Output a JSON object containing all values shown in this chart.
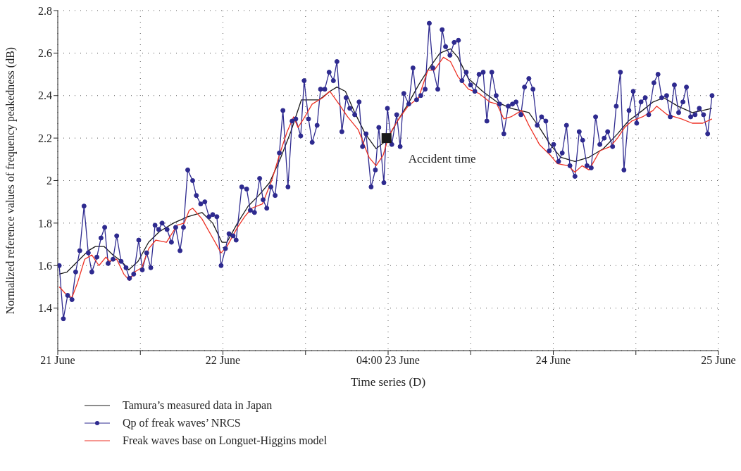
{
  "chart_data": {
    "type": "line",
    "xlabel": "Time series (D)",
    "ylabel": "Normalized reference values of frequency peakedness (dB)",
    "xlim": [
      "--06-21",
      "--06-25"
    ],
    "xticks": [
      {
        "value": "--06-21",
        "label": "21 June"
      },
      {
        "value": "--06-21T12:00",
        "label": null
      },
      {
        "value": "--06-22",
        "label": "22 June"
      },
      {
        "value": "--06-22T12:00",
        "label": null
      },
      {
        "value": "--06-23",
        "label": "04:00 23 June"
      },
      {
        "value": "--06-23T12:00",
        "label": null
      },
      {
        "value": "--06-24",
        "label": "24 June"
      },
      {
        "value": "--06-24T12:00",
        "label": null
      },
      {
        "value": "--06-25",
        "label": "25 June"
      }
    ],
    "ylim": [
      1.2,
      2.8
    ],
    "yticks": [
      1.4,
      1.6,
      1.8,
      2,
      2.2,
      2.4,
      2.6,
      2.8
    ],
    "grid": true,
    "legend": "bottom",
    "annotations": [
      {
        "text": "Accident time",
        "x": "--06-22T23:46",
        "y": 2.2
      }
    ],
    "series": [
      {
        "name": "Tamura’s measured data in Japan",
        "color": "#1a1a1a",
        "marker": "none",
        "x": [
          "--06-21T00:13",
          "--06-21T01:21",
          "--06-21T02:53",
          "--06-21T04:26",
          "--06-21T05:28",
          "--06-21T06:43",
          "--06-21T08:02",
          "--06-21T09:17",
          "--06-21T10:19",
          "--06-21T11:40",
          "--06-21T13:12",
          "--06-21T14:46",
          "--06-21T16:49",
          "--06-21T18:53",
          "--06-21T20:57",
          "--06-21T22:31",
          "--06-21T23:51",
          "--06-22T00:35",
          "--06-22T02:07",
          "--06-22T03:40",
          "--06-22T05:12",
          "--06-22T06:46",
          "--06-22T08:18",
          "--06-22T09:52",
          "--06-22T11:24",
          "--06-22T12:26",
          "--06-22T14:00",
          "--06-22T15:32",
          "--06-22T16:34",
          "--06-22T17:48",
          "--06-22T19:09",
          "--06-22T20:41",
          "--06-22T22:15",
          "--06-22T23:47",
          "--06-23T01:21",
          "--06-23T02:53",
          "--06-23T04:26",
          "--06-23T05:59",
          "--06-23T07:32",
          "--06-23T09:04",
          "--06-23T10:08",
          "--06-23T11:40",
          "--06-23T13:44",
          "--06-23T15:48",
          "--06-23T17:51",
          "--06-23T20:27",
          "--06-23T21:59",
          "--06-23T23:33",
          "--06-24T01:05",
          "--06-24T03:09",
          "--06-24T05:12",
          "--06-24T07:16",
          "--06-24T09:20",
          "--06-24T10:54",
          "--06-24T12:58",
          "--06-24T14:30",
          "--06-24T16:03",
          "--06-24T18:07",
          "--06-24T20:11",
          "--06-24T21:43",
          "--06-24T23:04"
        ],
        "values": [
          1.56,
          1.57,
          1.62,
          1.67,
          1.69,
          1.69,
          1.65,
          1.62,
          1.58,
          1.62,
          1.71,
          1.76,
          1.8,
          1.83,
          1.85,
          1.8,
          1.71,
          1.71,
          1.8,
          1.88,
          1.93,
          1.99,
          2.1,
          2.23,
          2.38,
          2.38,
          2.38,
          2.42,
          2.44,
          2.42,
          2.32,
          2.22,
          2.15,
          2.19,
          2.28,
          2.36,
          2.45,
          2.53,
          2.6,
          2.62,
          2.58,
          2.48,
          2.42,
          2.37,
          2.34,
          2.32,
          2.25,
          2.17,
          2.11,
          2.09,
          2.11,
          2.15,
          2.22,
          2.28,
          2.33,
          2.37,
          2.39,
          2.35,
          2.32,
          2.33,
          2.34
        ]
      },
      {
        "name": "Qp of freak waves’ NRCS",
        "color": "#2e2a8f",
        "marker": "circle",
        "x": [
          "--06-21T00:13",
          "--06-21T00:49",
          "--06-21T01:26",
          "--06-21T02:04",
          "--06-21T02:36",
          "--06-21T03:12",
          "--06-21T03:49",
          "--06-21T04:26",
          "--06-21T04:57",
          "--06-21T05:41",
          "--06-21T06:17",
          "--06-21T06:49",
          "--06-21T07:19",
          "--06-21T08:02",
          "--06-21T08:34",
          "--06-21T09:12",
          "--06-21T09:55",
          "--06-21T10:25",
          "--06-21T11:02",
          "--06-21T11:46",
          "--06-21T12:17",
          "--06-21T12:55",
          "--06-21T13:31",
          "--06-21T14:08",
          "--06-21T14:40",
          "--06-21T15:10",
          "--06-21T15:53",
          "--06-21T16:31",
          "--06-21T17:08",
          "--06-21T17:46",
          "--06-21T18:16",
          "--06-21T18:53",
          "--06-21T19:36",
          "--06-21T20:08",
          "--06-21T20:46",
          "--06-21T21:22",
          "--06-21T21:59",
          "--06-21T22:31",
          "--06-21T23:07",
          "--06-21T23:44",
          "--06-22T00:22",
          "--06-22T00:53",
          "--06-22T01:29",
          "--06-22T01:55",
          "--06-22T02:44",
          "--06-22T03:27",
          "--06-22T03:59",
          "--06-22T04:35",
          "--06-22T05:20",
          "--06-22T05:50",
          "--06-22T06:22",
          "--06-22T06:58",
          "--06-22T07:35",
          "--06-22T08:12",
          "--06-22T08:43",
          "--06-22T09:27",
          "--06-22T10:03",
          "--06-22T10:35",
          "--06-22T11:18",
          "--06-22T11:48",
          "--06-22T12:26",
          "--06-22T12:58",
          "--06-22T13:41",
          "--06-22T14:11",
          "--06-22T14:48",
          "--06-22T15:26",
          "--06-22T16:03",
          "--06-22T16:34",
          "--06-22T17:17",
          "--06-22T17:54",
          "--06-22T18:26",
          "--06-22T19:09",
          "--06-22T19:47",
          "--06-22T20:17",
          "--06-22T20:48",
          "--06-22T21:32",
          "--06-22T22:09",
          "--06-22T22:39",
          "--06-22T23:23",
          "--06-22T23:54",
          "--06-23T00:32",
          "--06-23T01:15",
          "--06-23T01:45",
          "--06-23T02:17",
          "--06-23T03:00",
          "--06-23T03:37",
          "--06-23T04:08",
          "--06-23T04:45",
          "--06-23T05:23",
          "--06-23T05:59",
          "--06-23T06:30",
          "--06-23T07:13",
          "--06-23T07:51",
          "--06-23T08:21",
          "--06-23T08:59",
          "--06-23T09:36",
          "--06-23T10:13",
          "--06-23T10:44",
          "--06-23T11:21",
          "--06-23T11:59",
          "--06-23T12:36",
          "--06-23T13:13",
          "--06-23T13:49",
          "--06-23T14:21",
          "--06-23T15:04",
          "--06-23T15:42",
          "--06-23T16:12",
          "--06-23T16:49",
          "--06-23T17:27",
          "--06-23T18:04",
          "--06-23T18:35",
          "--06-23T19:18",
          "--06-23T19:49",
          "--06-23T20:27",
          "--06-23T21:03",
          "--06-23T21:40",
          "--06-23T22:18",
          "--06-23T22:55",
          "--06-23T23:25",
          "--06-24T00:03",
          "--06-24T00:46",
          "--06-24T01:18",
          "--06-24T01:55",
          "--06-24T02:25",
          "--06-24T03:09",
          "--06-24T03:46",
          "--06-24T04:16",
          "--06-24T04:54",
          "--06-24T05:31",
          "--06-24T06:09",
          "--06-24T06:46",
          "--06-24T07:24",
          "--06-24T07:54",
          "--06-24T08:37",
          "--06-24T09:09",
          "--06-24T09:45",
          "--06-24T10:16",
          "--06-24T11:00",
          "--06-24T11:37",
          "--06-24T12:07",
          "--06-24T12:45",
          "--06-24T13:22",
          "--06-24T13:52",
          "--06-24T14:37",
          "--06-24T15:13",
          "--06-24T15:45",
          "--06-24T16:28",
          "--06-24T17:00",
          "--06-24T17:36",
          "--06-24T18:13",
          "--06-24T18:50",
          "--06-24T19:21",
          "--06-24T19:58",
          "--06-24T20:36",
          "--06-24T21:13",
          "--06-24T21:50",
          "--06-24T22:26",
          "--06-24T23:04"
        ],
        "values": [
          1.6,
          1.35,
          1.46,
          1.44,
          1.57,
          1.67,
          1.88,
          1.66,
          1.57,
          1.64,
          1.73,
          1.78,
          1.61,
          1.63,
          1.74,
          1.62,
          1.59,
          1.54,
          1.56,
          1.72,
          1.58,
          1.66,
          1.59,
          1.79,
          1.77,
          1.8,
          1.77,
          1.71,
          1.78,
          1.67,
          1.78,
          2.05,
          2,
          1.93,
          1.89,
          1.9,
          1.83,
          1.84,
          1.83,
          1.6,
          1.68,
          1.75,
          1.74,
          1.72,
          1.97,
          1.96,
          1.86,
          1.85,
          2.01,
          1.91,
          1.87,
          1.97,
          1.93,
          2.13,
          2.33,
          1.97,
          2.28,
          2.29,
          2.21,
          2.47,
          2.29,
          2.18,
          2.26,
          2.43,
          2.43,
          2.51,
          2.47,
          2.56,
          2.23,
          2.39,
          2.34,
          2.31,
          2.37,
          2.16,
          2.22,
          1.97,
          2.05,
          2.25,
          1.99,
          2.34,
          2.17,
          2.31,
          2.16,
          2.41,
          2.36,
          2.53,
          2.38,
          2.4,
          2.43,
          2.74,
          2.53,
          2.43,
          2.71,
          2.63,
          2.59,
          2.65,
          2.66,
          2.47,
          2.51,
          2.45,
          2.42,
          2.5,
          2.51,
          2.28,
          2.51,
          2.4,
          2.36,
          2.22,
          2.35,
          2.36,
          2.37,
          2.31,
          2.44,
          2.48,
          2.43,
          2.26,
          2.3,
          2.28,
          2.14,
          2.17,
          2.09,
          2.13,
          2.26,
          2.07,
          2.02,
          2.23,
          2.19,
          2.07,
          2.06,
          2.3,
          2.17,
          2.2,
          2.23,
          2.16,
          2.35,
          2.51,
          2.05,
          2.33,
          2.42,
          2.27,
          2.37,
          2.39,
          2.31,
          2.46,
          2.5,
          2.39,
          2.4,
          2.3,
          2.45,
          2.32,
          2.37,
          2.44,
          2.3,
          2.31,
          2.34,
          2.31,
          2.22,
          2.4
        ]
      },
      {
        "name": "Freak waves base on Longuet-Higgins model",
        "color": "#ee3124",
        "marker": "none",
        "x": [
          "--06-21T00:13",
          "--06-21T01:21",
          "--06-21T02:04",
          "--06-21T02:53",
          "--06-21T03:55",
          "--06-21T04:57",
          "--06-21T05:59",
          "--06-21T07:00",
          "--06-21T07:32",
          "--06-21T08:34",
          "--06-21T09:36",
          "--06-21T10:25",
          "--06-21T11:10",
          "--06-21T12:12",
          "--06-21T13:13",
          "--06-21T14:15",
          "--06-21T15:48",
          "--06-21T17:21",
          "--06-21T18:23",
          "--06-21T19:06",
          "--06-21T19:36",
          "--06-21T20:57",
          "--06-21T22:31",
          "--06-21T23:44",
          "--06-22T00:35",
          "--06-22T02:07",
          "--06-22T03:09",
          "--06-22T04:11",
          "--06-22T05:44",
          "--06-22T07:05",
          "--06-22T08:18",
          "--06-22T09:20",
          "--06-22T10:16",
          "--06-22T10:54",
          "--06-22T11:43",
          "--06-22T12:58",
          "--06-22T14:30",
          "--06-22T15:32",
          "--06-22T16:52",
          "--06-22T18:07",
          "--06-22T19:39",
          "--06-22T21:13",
          "--06-22T22:15",
          "--06-22T23:17",
          "--06-23T00:06",
          "--06-23T01:21",
          "--06-23T02:53",
          "--06-23T04:26",
          "--06-23T05:47",
          "--06-23T06:43",
          "--06-23T08:02",
          "--06-23T09:04",
          "--06-23T10:08",
          "--06-23T11:40",
          "--06-23T13:13",
          "--06-23T14:46",
          "--06-23T15:48",
          "--06-23T16:49",
          "--06-23T17:51",
          "--06-23T19:25",
          "--06-23T20:27",
          "--06-23T21:59",
          "--06-23T23:33",
          "--06-24T00:35",
          "--06-24T02:07",
          "--06-24T03:09",
          "--06-24T04:11",
          "--06-24T05:12",
          "--06-24T06:46",
          "--06-24T08:18",
          "--06-24T09:20",
          "--06-24T10:22",
          "--06-24T11:24",
          "--06-24T12:58",
          "--06-24T14:30",
          "--06-24T15:01",
          "--06-24T16:34",
          "--06-24T18:37",
          "--06-24T20:11",
          "--06-24T21:43",
          "--06-24T23:04"
        ],
        "values": [
          1.5,
          1.46,
          1.45,
          1.52,
          1.63,
          1.65,
          1.6,
          1.64,
          1.62,
          1.63,
          1.56,
          1.53,
          1.57,
          1.59,
          1.68,
          1.72,
          1.71,
          1.79,
          1.8,
          1.86,
          1.87,
          1.82,
          1.73,
          1.66,
          1.69,
          1.78,
          1.83,
          1.87,
          1.89,
          2,
          2.13,
          2.23,
          2.3,
          2.25,
          2.29,
          2.36,
          2.39,
          2.42,
          2.36,
          2.3,
          2.24,
          2.11,
          2.07,
          2.12,
          2.21,
          2.28,
          2.35,
          2.39,
          2.52,
          2.52,
          2.58,
          2.56,
          2.49,
          2.43,
          2.41,
          2.37,
          2.36,
          2.29,
          2.3,
          2.33,
          2.26,
          2.17,
          2.12,
          2.08,
          2.07,
          2.04,
          2.07,
          2.05,
          2.14,
          2.16,
          2.2,
          2.25,
          2.28,
          2.3,
          2.33,
          2.35,
          2.31,
          2.29,
          2.27,
          2.27,
          2.29
        ]
      },
      {
        "type": "scatter",
        "color": "#1a1a1a",
        "marker": "square",
        "x": [
          "--06-22T23:46"
        ],
        "values": [
          2.2
        ]
      }
    ]
  }
}
